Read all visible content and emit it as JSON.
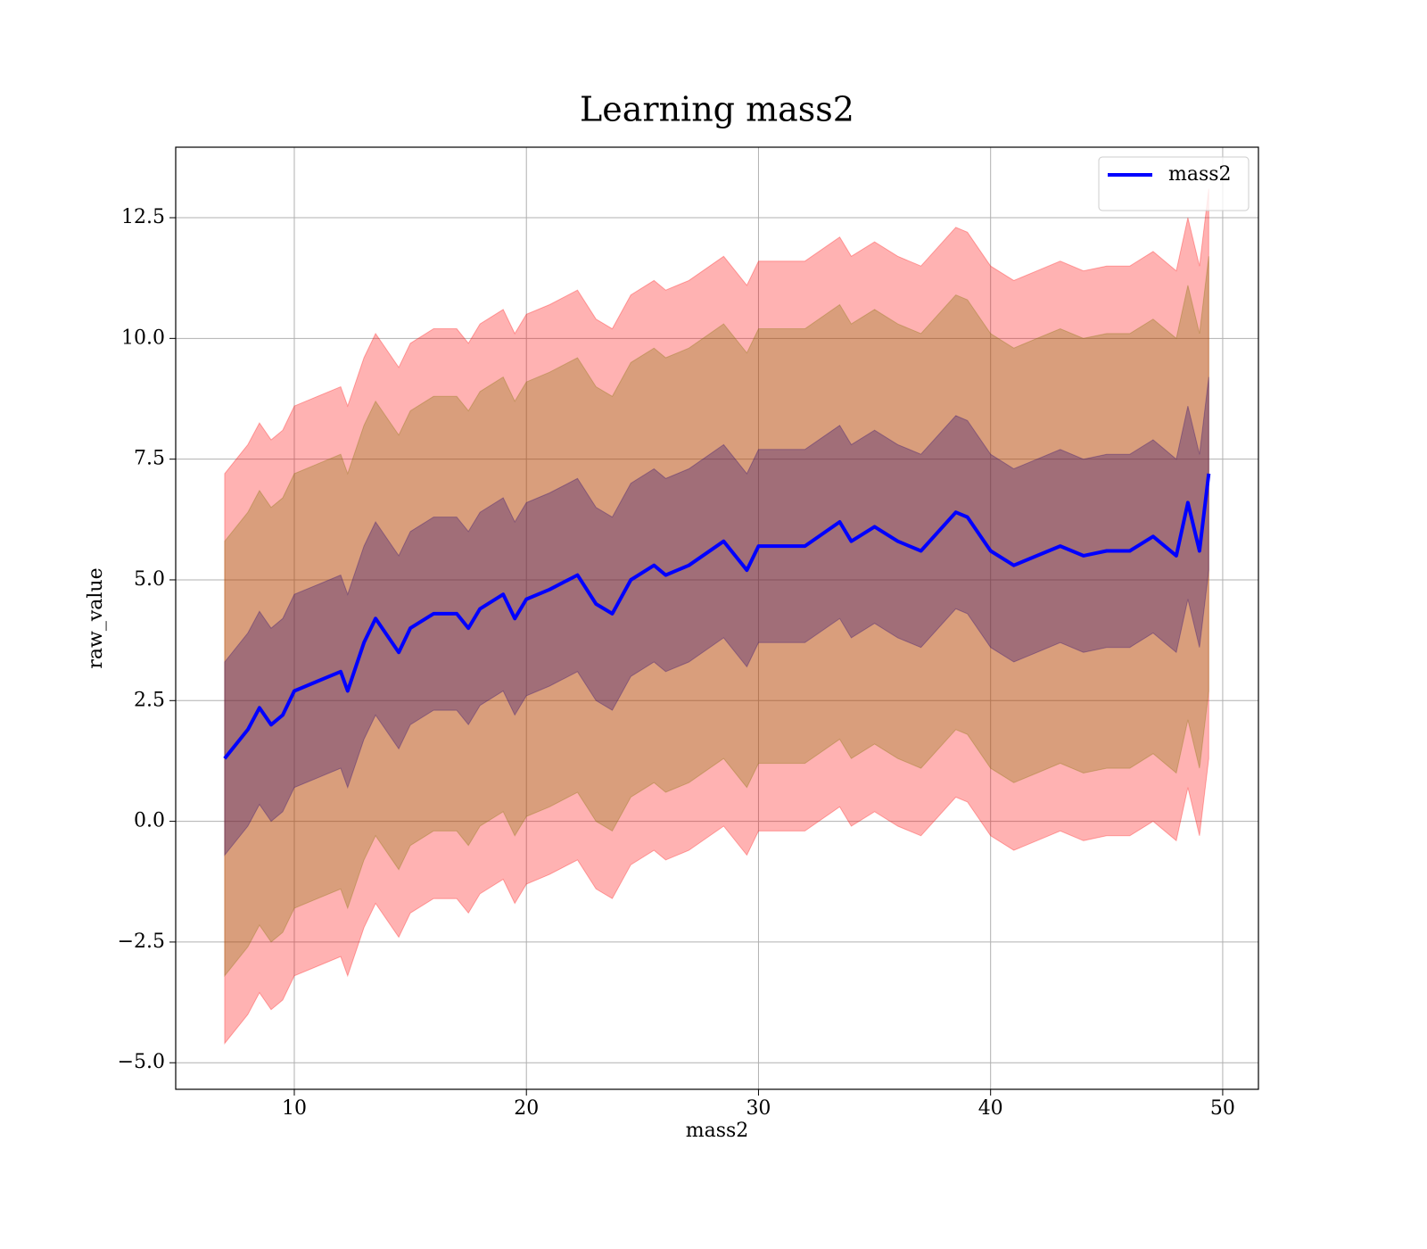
{
  "chart_data": {
    "type": "line",
    "title": "Learning mass2",
    "x_label": "mass2",
    "y_label": "raw_value",
    "x": [
      7,
      8,
      8.5,
      9,
      9.5,
      10,
      11,
      12,
      12.3,
      13,
      13.5,
      14.5,
      15,
      16,
      17,
      17.5,
      18,
      19,
      19.5,
      20,
      21,
      22.2,
      23,
      23.7,
      24.5,
      25.5,
      26,
      27,
      28.5,
      29.5,
      30,
      32,
      33.5,
      34,
      35,
      36,
      37,
      38.5,
      39,
      40,
      41,
      42,
      43,
      44,
      45,
      46,
      47,
      48,
      48.5,
      49,
      49.4
    ],
    "series": [
      {
        "name": "mass2",
        "color": "#0000ff",
        "values": [
          1.3,
          1.9,
          2.35,
          2.0,
          2.2,
          2.7,
          2.9,
          3.1,
          2.7,
          3.7,
          4.2,
          3.5,
          4.0,
          4.3,
          4.3,
          4.0,
          4.4,
          4.7,
          4.2,
          4.6,
          4.8,
          5.1,
          4.5,
          4.3,
          5.0,
          5.3,
          5.1,
          5.3,
          5.8,
          5.2,
          5.7,
          5.7,
          6.2,
          5.8,
          6.1,
          5.8,
          5.6,
          6.4,
          6.3,
          5.6,
          5.3,
          5.5,
          5.7,
          5.5,
          5.6,
          5.6,
          5.9,
          5.5,
          6.6,
          5.6,
          7.2
        ]
      }
    ],
    "bands": [
      {
        "color": "#ff0000",
        "lower": [
          -4.6,
          -4,
          -3.55,
          -3.9,
          -3.7,
          -3.2,
          -3,
          -2.8,
          -3.2,
          -2.2,
          -1.7,
          -2.4,
          -1.9,
          -1.6,
          -1.6,
          -1.9,
          -1.5,
          -1.2,
          -1.7,
          -1.3,
          -1.1,
          -0.8,
          -1.4,
          -1.6,
          -0.9,
          -0.6,
          -0.8,
          -0.6,
          -0.1,
          -0.7,
          -0.2,
          -0.2,
          0.3,
          -0.1,
          0.2,
          -0.1,
          -0.3,
          0.5,
          0.4,
          -0.3,
          -0.6,
          -0.4,
          -0.2,
          -0.4,
          -0.3,
          -0.3,
          0,
          -0.4,
          0.7,
          -0.3,
          1.3
        ],
        "upper": [
          7.2,
          7.8,
          8.25,
          7.9,
          8.1,
          8.6,
          8.8,
          9,
          8.6,
          9.6,
          10.1,
          9.4,
          9.9,
          10.2,
          10.2,
          9.9,
          10.3,
          10.6,
          10.1,
          10.5,
          10.7,
          11,
          10.4,
          10.2,
          10.9,
          11.2,
          11,
          11.2,
          11.7,
          11.1,
          11.6,
          11.6,
          12.1,
          11.7,
          12,
          11.7,
          11.5,
          12.3,
          12.2,
          11.5,
          11.2,
          11.4,
          11.6,
          11.4,
          11.5,
          11.5,
          11.8,
          11.4,
          12.5,
          11.5,
          13.1
        ]
      },
      {
        "color": "#807000",
        "lower": [
          -3.2,
          -2.6,
          -2.15,
          -2.5,
          -2.3,
          -1.8,
          -1.6,
          -1.4,
          -1.8,
          -0.8,
          -0.3,
          -1,
          -0.5,
          -0.2,
          -0.2,
          -0.5,
          -0.1,
          0.2,
          -0.3,
          0.1,
          0.3,
          0.6,
          0,
          -0.2,
          0.5,
          0.8,
          0.6,
          0.8,
          1.3,
          0.7,
          1.2,
          1.2,
          1.7,
          1.3,
          1.6,
          1.3,
          1.1,
          1.9,
          1.8,
          1.1,
          0.8,
          1,
          1.2,
          1,
          1.1,
          1.1,
          1.4,
          1,
          2.1,
          1.1,
          2.7
        ],
        "upper": [
          5.8,
          6.4,
          6.85,
          6.5,
          6.7,
          7.2,
          7.4,
          7.6,
          7.2,
          8.2,
          8.7,
          8,
          8.5,
          8.8,
          8.8,
          8.5,
          8.9,
          9.2,
          8.7,
          9.1,
          9.3,
          9.6,
          9,
          8.8,
          9.5,
          9.8,
          9.6,
          9.8,
          10.3,
          9.7,
          10.2,
          10.2,
          10.7,
          10.3,
          10.6,
          10.3,
          10.1,
          10.9,
          10.8,
          10.1,
          9.8,
          10,
          10.2,
          10,
          10.1,
          10.1,
          10.4,
          10,
          11.1,
          10.1,
          11.7
        ]
      },
      {
        "color": "#200070",
        "lower": [
          -0.7,
          -0.1,
          0.35,
          0,
          0.2,
          0.7,
          0.9,
          1.1,
          0.7,
          1.7,
          2.2,
          1.5,
          2,
          2.3,
          2.3,
          2,
          2.4,
          2.7,
          2.2,
          2.6,
          2.8,
          3.1,
          2.5,
          2.3,
          3,
          3.3,
          3.1,
          3.3,
          3.8,
          3.2,
          3.7,
          3.7,
          4.2,
          3.8,
          4.1,
          3.8,
          3.6,
          4.4,
          4.3,
          3.6,
          3.3,
          3.5,
          3.7,
          3.5,
          3.6,
          3.6,
          3.9,
          3.5,
          4.6,
          3.6,
          5.2
        ],
        "upper": [
          3.3,
          3.9,
          4.35,
          4,
          4.2,
          4.7,
          4.9,
          5.1,
          4.7,
          5.7,
          6.2,
          5.5,
          6,
          6.3,
          6.3,
          6,
          6.4,
          6.7,
          6.2,
          6.6,
          6.8,
          7.1,
          6.5,
          6.3,
          7,
          7.3,
          7.1,
          7.3,
          7.8,
          7.2,
          7.7,
          7.7,
          8.2,
          7.8,
          8.1,
          7.8,
          7.6,
          8.4,
          8.3,
          7.6,
          7.3,
          7.5,
          7.7,
          7.5,
          7.6,
          7.6,
          7.9,
          7.5,
          8.6,
          7.6,
          9.2
        ]
      }
    ],
    "band_alpha": 0.3,
    "xlim": [
      4.89,
      51.54
    ],
    "xticks": [
      10,
      20,
      30,
      40,
      50
    ],
    "ylim": [
      -5.55,
      13.96
    ],
    "yticks": [
      {
        "value": -5,
        "label": "−5.0"
      },
      {
        "value": -2.5,
        "label": "−2.5"
      },
      {
        "value": 0,
        "label": "0.0"
      },
      2.5,
      {
        "value": 5,
        "label": "5.0"
      },
      7.5,
      {
        "value": 10,
        "label": "10.0"
      },
      12.5
    ],
    "grid": true,
    "legend": "upper right"
  }
}
